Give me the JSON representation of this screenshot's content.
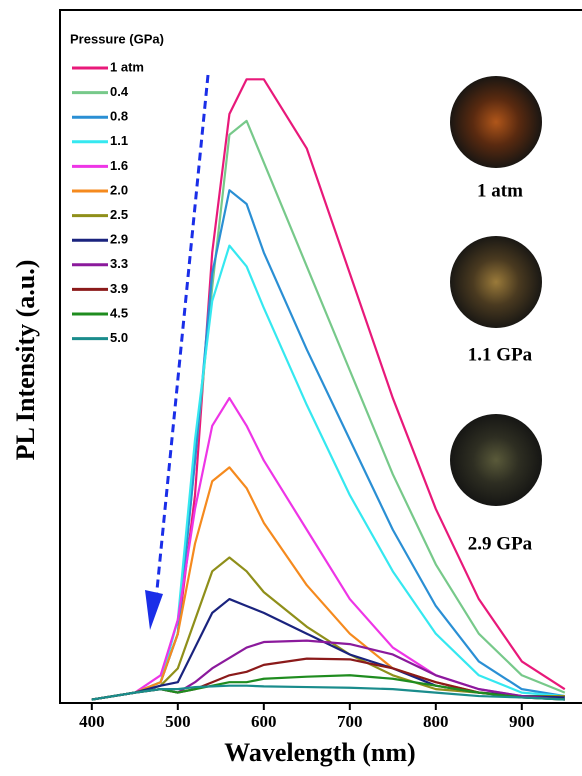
{
  "chart_data": {
    "type": "line",
    "xlabel": "Wavelength (nm)",
    "ylabel": "PL Intensity (a.u.)",
    "legend_title": "Pressure (GPa)",
    "legend": "upper left",
    "xlim": [
      363,
      970
    ],
    "ylim": [
      0,
      100
    ],
    "xticks": [
      400,
      500,
      600,
      700,
      800,
      900
    ],
    "x": [
      400,
      450,
      480,
      500,
      520,
      540,
      560,
      580,
      600,
      650,
      700,
      750,
      800,
      850,
      900,
      950
    ],
    "series": [
      {
        "name": "1 atm",
        "color": "#e8197a",
        "values": [
          0.5,
          1.5,
          3,
          10,
          30,
          65,
          85,
          90,
          90,
          80,
          62,
          44,
          28,
          15,
          6,
          2
        ]
      },
      {
        "name": "0.4",
        "color": "#77c98a",
        "values": [
          0.5,
          1.5,
          3,
          10,
          35,
          60,
          82,
          84,
          78,
          63,
          48,
          33,
          20,
          10,
          4,
          1.5
        ]
      },
      {
        "name": "0.8",
        "color": "#2a8fd4",
        "values": [
          0.5,
          1.5,
          3,
          10,
          35,
          62,
          74,
          72,
          65,
          51,
          38,
          25,
          14,
          6,
          2,
          1
        ]
      },
      {
        "name": "1.1",
        "color": "#35e8f0",
        "values": [
          0.5,
          1.5,
          3,
          12,
          38,
          58,
          66,
          63,
          57,
          43,
          30,
          19,
          10,
          4,
          1.5,
          1
        ]
      },
      {
        "name": "1.6",
        "color": "#ee35e6",
        "values": [
          0.5,
          1.5,
          4,
          12,
          28,
          40,
          44,
          40,
          35,
          25,
          15,
          8,
          4,
          2,
          1,
          1
        ]
      },
      {
        "name": "2.0",
        "color": "#f58a1e",
        "values": [
          0.5,
          1.5,
          3,
          10,
          23,
          32,
          34,
          31,
          26,
          17,
          10,
          5,
          3,
          1.5,
          1,
          1
        ]
      },
      {
        "name": "2.5",
        "color": "#8f8f1a",
        "values": [
          0.5,
          1.5,
          2.5,
          5,
          12,
          19,
          21,
          19,
          16,
          11,
          7,
          4,
          2,
          1.5,
          1,
          1
        ]
      },
      {
        "name": "2.9",
        "color": "#1a237e",
        "values": [
          0.5,
          1.5,
          2.5,
          3,
          8,
          13,
          15,
          14,
          13,
          10,
          7,
          5,
          2.5,
          1.5,
          1,
          0.8
        ]
      },
      {
        "name": "3.3",
        "color": "#8b1a9c",
        "values": [
          0.5,
          1.5,
          2,
          1.5,
          3,
          5,
          6.5,
          8,
          8.8,
          9,
          8.5,
          7,
          4,
          2,
          1,
          0.5
        ]
      },
      {
        "name": "3.9",
        "color": "#8b1a1a",
        "values": [
          0.5,
          1.5,
          2,
          1.5,
          2,
          3,
          4,
          4.5,
          5.5,
          6.4,
          6.3,
          5,
          3,
          1.5,
          0.8,
          0.5
        ]
      },
      {
        "name": "4.5",
        "color": "#1f8c1f",
        "values": [
          0.5,
          1.5,
          2,
          1.5,
          2,
          2.5,
          3,
          3,
          3.5,
          3.8,
          4,
          3.5,
          2.5,
          1.5,
          0.8,
          0.5
        ]
      },
      {
        "name": "5.0",
        "color": "#1a8c8c",
        "values": [
          0.5,
          1.5,
          2,
          2,
          2.3,
          2.4,
          2.5,
          2.5,
          2.4,
          2.3,
          2.2,
          2,
          1.5,
          1,
          0.8,
          0.5
        ]
      }
    ],
    "insets": [
      {
        "label": "1 atm"
      },
      {
        "label": "1.1 GPa"
      },
      {
        "label": "2.9 GPa"
      }
    ]
  }
}
